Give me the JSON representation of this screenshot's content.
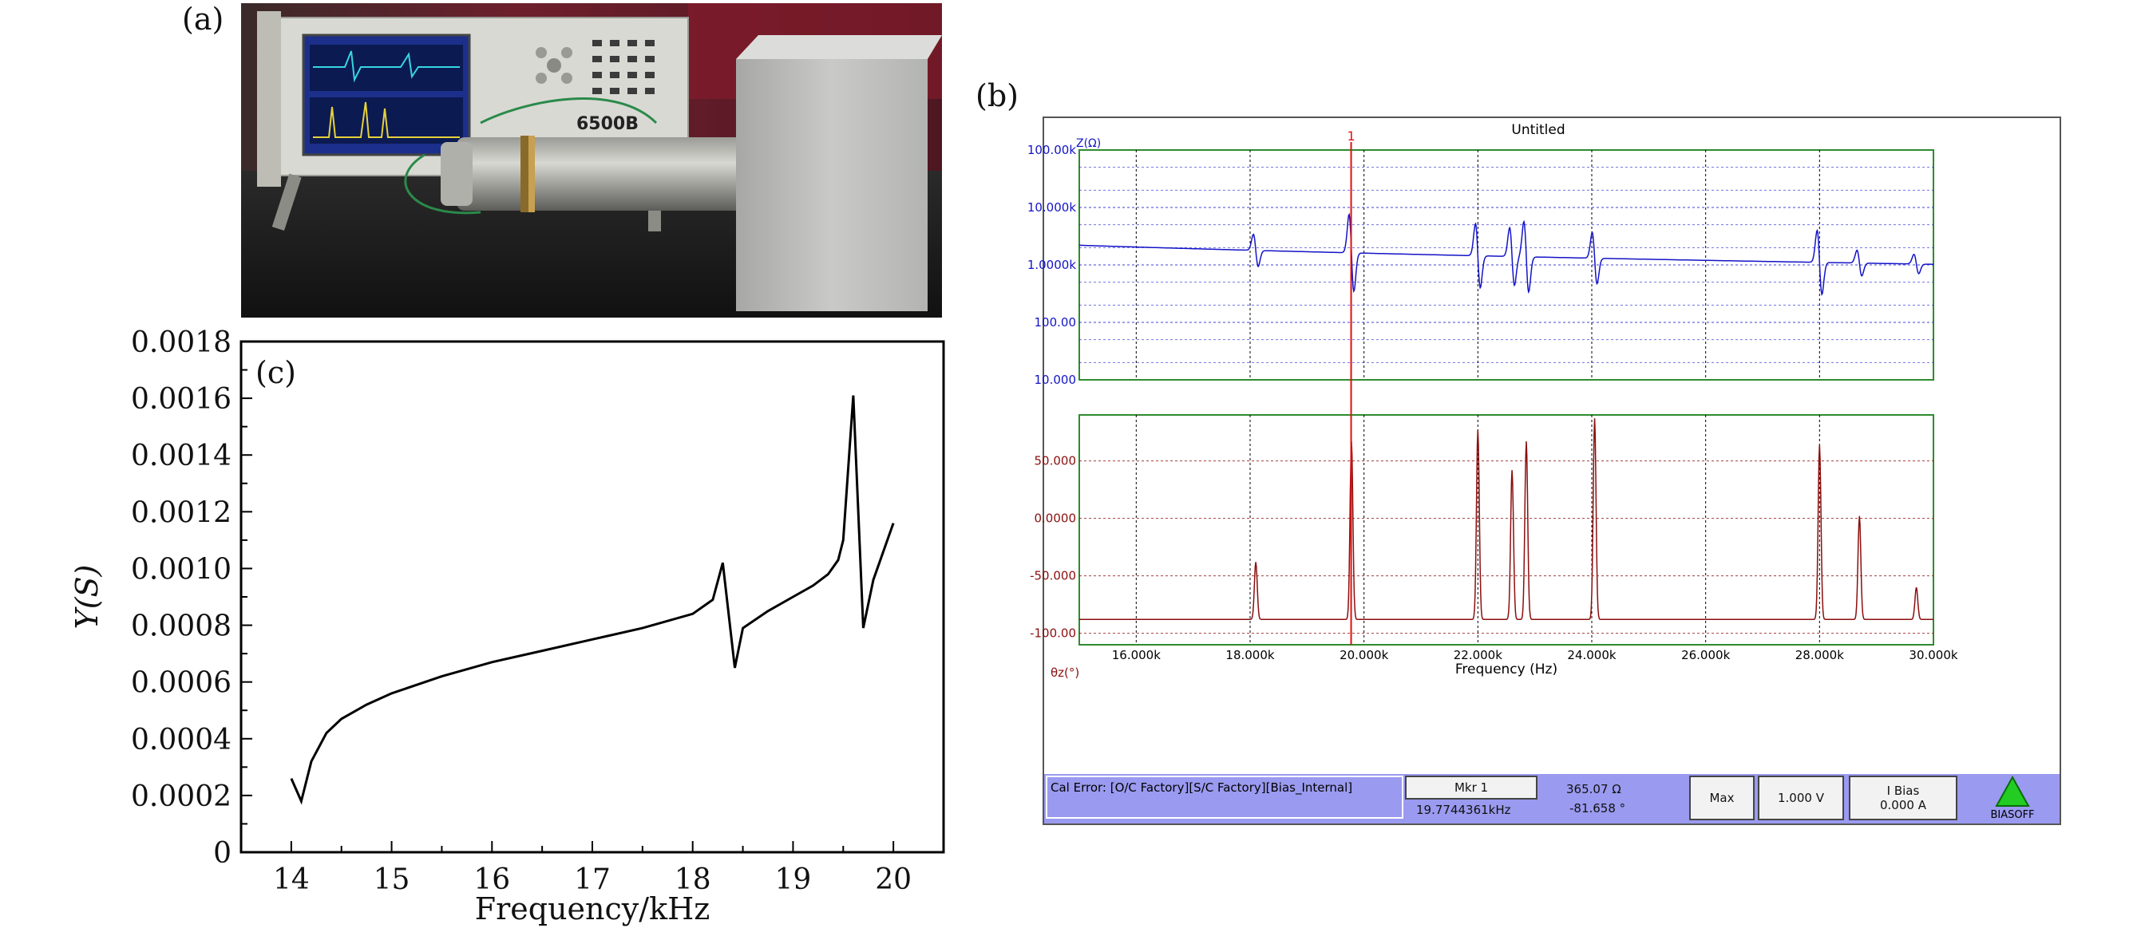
{
  "panels": {
    "a": "(a)",
    "b": "(b)",
    "c": "(c)"
  },
  "photo": {
    "device_model_text": "6500B"
  },
  "analyzer": {
    "title": "Untitled",
    "marker_index_label": "1",
    "top_plot": {
      "ylabel": "Z(Ω)",
      "y_ticks": [
        "100.00k",
        "10.000k",
        "1.0000k",
        "100.00",
        "10.000"
      ],
      "scale": "log",
      "trace_color": "#1414c8"
    },
    "bottom_plot": {
      "ylabel": "θz(°)",
      "y_ticks": [
        "50.000",
        "0.0000",
        "-50.000",
        "-100.00"
      ],
      "trace_color": "#8b0f0f"
    },
    "x_ticks": [
      "16.000k",
      "18.000k",
      "20.000k",
      "22.000k",
      "24.000k",
      "26.000k",
      "28.000k",
      "30.000k"
    ],
    "xlabel": "Frequency (Hz)",
    "status": {
      "cal_error": "Cal Error: [O/C Factory][S/C Factory][Bias_Internal]",
      "marker_button": "Mkr 1",
      "marker_freq": "19.7744361kHz",
      "marker_impedance": "365.07 Ω",
      "marker_phase": "-81.658 °",
      "max_button": "Max",
      "voltage_button": "1.000 V",
      "ibias_label": "I Bias",
      "ibias_value": "0.000 A",
      "bias_state": "BIASOFF"
    },
    "colors": {
      "grid_frame": "#2e8b2e",
      "marker_line": "#e01010",
      "status_bar": "#9a9af0"
    }
  },
  "chart_data": {
    "type": "line",
    "title": "",
    "xlabel": "Frequency/kHz",
    "ylabel": "Y(S)",
    "xlim": [
      13.5,
      20.5
    ],
    "ylim": [
      0,
      0.0018
    ],
    "x_ticks": [
      14,
      15,
      16,
      17,
      18,
      19,
      20
    ],
    "y_ticks": [
      "0",
      "0.0002",
      "0.0004",
      "0.0006",
      "0.0008",
      "0.0010",
      "0.0012",
      "0.0014",
      "0.0016",
      "0.0018"
    ],
    "series": [
      {
        "x": [
          14.0,
          14.1,
          14.2,
          14.35,
          14.5,
          14.75,
          15.0,
          15.5,
          16.0,
          16.5,
          17.0,
          17.5,
          18.0,
          18.2,
          18.3,
          18.42,
          18.5,
          18.75,
          19.0,
          19.2,
          19.35,
          19.45,
          19.5,
          19.6,
          19.7,
          19.8,
          20.0
        ],
        "y": [
          0.00026,
          0.00018,
          0.00032,
          0.00042,
          0.00047,
          0.00052,
          0.00056,
          0.00062,
          0.00067,
          0.00071,
          0.00075,
          0.00079,
          0.00084,
          0.00089,
          0.00102,
          0.00065,
          0.00079,
          0.00085,
          0.0009,
          0.00094,
          0.00098,
          0.00103,
          0.0011,
          0.00161,
          0.00079,
          0.00096,
          0.00116
        ]
      }
    ],
    "line_color": "#000000",
    "grid": false
  }
}
